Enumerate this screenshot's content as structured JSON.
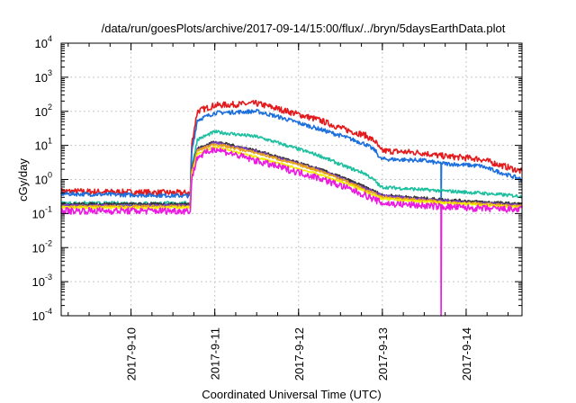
{
  "chart_data": {
    "type": "line",
    "title": "/data/run/goesPlots/archive/2017-09-14/15:00/flux/../bryn/5daysEarthData.plot",
    "xlabel": "Coordinated Universal Time (UTC)",
    "ylabel": "cGy/day",
    "y_scale": "log",
    "xlim": [
      "2017-09-09T04:00",
      "2017-09-14T16:00"
    ],
    "ylim": [
      0.0001,
      10000
    ],
    "x_ticks": [
      "2017-9-10",
      "2017-9-11",
      "2017-9-12",
      "2017-9-13",
      "2017-9-14"
    ],
    "y_ticks": [
      {
        "base": "10",
        "exp": "-4"
      },
      {
        "base": "10",
        "exp": "-3"
      },
      {
        "base": "10",
        "exp": "-2"
      },
      {
        "base": "10",
        "exp": "-1"
      },
      {
        "base": "10",
        "exp": "0"
      },
      {
        "base": "10",
        "exp": "1"
      },
      {
        "base": "10",
        "exp": "2"
      },
      {
        "base": "10",
        "exp": "3"
      },
      {
        "base": "10",
        "exp": "4"
      }
    ],
    "grid": true,
    "legend": "none",
    "series": [
      {
        "color": "#e41a1c",
        "noise": 0.09,
        "points": [
          [
            "2017-09-09T04:00",
            0.45
          ],
          [
            "2017-09-10T17:00",
            0.4
          ],
          [
            "2017-09-10T17:20",
            10
          ],
          [
            "2017-09-10T19:00",
            100
          ],
          [
            "2017-09-11T00:00",
            150
          ],
          [
            "2017-09-11T12:00",
            170
          ],
          [
            "2017-09-11T18:00",
            120
          ],
          [
            "2017-09-12T06:00",
            55
          ],
          [
            "2017-09-12T13:00",
            30
          ],
          [
            "2017-09-12T19:00",
            20
          ],
          [
            "2017-09-12T22:00",
            13
          ],
          [
            "2017-09-12T23:30",
            7
          ],
          [
            "2017-09-13T12:00",
            6
          ],
          [
            "2017-09-13T16:00",
            5
          ],
          [
            "2017-09-14T04:00",
            4
          ],
          [
            "2017-09-14T16:00",
            1.7
          ]
        ]
      },
      {
        "color": "#1c6fdc",
        "noise": 0.06,
        "points": [
          [
            "2017-09-09T04:00",
            0.38
          ],
          [
            "2017-09-10T17:00",
            0.33
          ],
          [
            "2017-09-10T17:20",
            6
          ],
          [
            "2017-09-10T19:00",
            55
          ],
          [
            "2017-09-11T00:00",
            90
          ],
          [
            "2017-09-11T12:00",
            100
          ],
          [
            "2017-09-11T18:00",
            70
          ],
          [
            "2017-09-12T06:00",
            30
          ],
          [
            "2017-09-12T13:00",
            18
          ],
          [
            "2017-09-12T19:00",
            11
          ],
          [
            "2017-09-12T22:00",
            7
          ],
          [
            "2017-09-12T23:30",
            4
          ],
          [
            "2017-09-13T12:00",
            3.6
          ],
          [
            "2017-09-13T16:00",
            3
          ],
          [
            "2017-09-14T04:00",
            2.5
          ],
          [
            "2017-09-14T16:00",
            1.0
          ]
        ],
        "spike": {
          "at": "2017-09-13T16:50",
          "to": 0.12
        }
      },
      {
        "color": "#1dbf9f",
        "noise": 0.05,
        "points": [
          [
            "2017-09-09T04:00",
            0.2
          ],
          [
            "2017-09-10T17:00",
            0.2
          ],
          [
            "2017-09-10T17:20",
            2
          ],
          [
            "2017-09-10T19:00",
            15
          ],
          [
            "2017-09-11T00:00",
            25
          ],
          [
            "2017-09-11T12:00",
            18
          ],
          [
            "2017-09-11T18:00",
            12
          ],
          [
            "2017-09-12T06:00",
            5
          ],
          [
            "2017-09-12T13:00",
            2.5
          ],
          [
            "2017-09-12T19:00",
            1.5
          ],
          [
            "2017-09-12T22:00",
            0.9
          ],
          [
            "2017-09-12T23:30",
            0.6
          ],
          [
            "2017-09-13T12:00",
            0.5
          ],
          [
            "2017-09-14T04:00",
            0.4
          ],
          [
            "2017-09-14T16:00",
            0.32
          ]
        ]
      },
      {
        "color": "#333333",
        "noise": 0.04,
        "points": [
          [
            "2017-09-09T04:00",
            0.19
          ],
          [
            "2017-09-10T17:00",
            0.19
          ],
          [
            "2017-09-10T17:20",
            2
          ],
          [
            "2017-09-10T19:00",
            8
          ],
          [
            "2017-09-11T00:00",
            13
          ],
          [
            "2017-09-11T12:00",
            7
          ],
          [
            "2017-09-12T06:00",
            2
          ],
          [
            "2017-09-12T13:00",
            1.1
          ],
          [
            "2017-09-12T19:00",
            0.6
          ],
          [
            "2017-09-13T00:00",
            0.35
          ],
          [
            "2017-09-13T12:00",
            0.28
          ],
          [
            "2017-09-14T04:00",
            0.22
          ],
          [
            "2017-09-14T16:00",
            0.19
          ]
        ]
      },
      {
        "color": "#7b3fc4",
        "noise": 0.04,
        "points": [
          [
            "2017-09-09T04:00",
            0.17
          ],
          [
            "2017-09-10T17:00",
            0.17
          ],
          [
            "2017-09-10T17:20",
            1.8
          ],
          [
            "2017-09-10T19:00",
            7.5
          ],
          [
            "2017-09-11T00:00",
            12
          ],
          [
            "2017-09-11T12:00",
            6.5
          ],
          [
            "2017-09-12T06:00",
            1.9
          ],
          [
            "2017-09-12T13:00",
            1.0
          ],
          [
            "2017-09-12T19:00",
            0.55
          ],
          [
            "2017-09-13T00:00",
            0.33
          ],
          [
            "2017-09-13T12:00",
            0.26
          ],
          [
            "2017-09-14T04:00",
            0.2
          ],
          [
            "2017-09-14T16:00",
            0.17
          ]
        ]
      },
      {
        "color": "#e8a21a",
        "noise": 0.04,
        "points": [
          [
            "2017-09-09T04:00",
            0.16
          ],
          [
            "2017-09-10T17:00",
            0.16
          ],
          [
            "2017-09-10T17:20",
            1.6
          ],
          [
            "2017-09-10T19:00",
            7
          ],
          [
            "2017-09-11T00:00",
            11
          ],
          [
            "2017-09-11T12:00",
            6
          ],
          [
            "2017-09-12T06:00",
            1.8
          ],
          [
            "2017-09-12T13:00",
            0.95
          ],
          [
            "2017-09-12T19:00",
            0.5
          ],
          [
            "2017-09-13T00:00",
            0.3
          ],
          [
            "2017-09-13T12:00",
            0.24
          ],
          [
            "2017-09-14T04:00",
            0.19
          ],
          [
            "2017-09-14T16:00",
            0.16
          ]
        ]
      },
      {
        "color": "#f0f000",
        "noise": 0.03,
        "points": [
          [
            "2017-09-09T04:00",
            0.15
          ],
          [
            "2017-09-10T17:00",
            0.15
          ],
          [
            "2017-09-10T17:20",
            1.3
          ],
          [
            "2017-09-10T19:00",
            5.5
          ],
          [
            "2017-09-11T00:00",
            9
          ],
          [
            "2017-09-11T12:00",
            4.5
          ],
          [
            "2017-09-12T06:00",
            1.4
          ],
          [
            "2017-09-12T13:00",
            0.8
          ],
          [
            "2017-09-12T19:00",
            0.45
          ],
          [
            "2017-09-13T00:00",
            0.27
          ],
          [
            "2017-09-13T12:00",
            0.22
          ],
          [
            "2017-09-14T04:00",
            0.18
          ],
          [
            "2017-09-14T16:00",
            0.15
          ]
        ]
      },
      {
        "color": "#ec1be0",
        "noise": 0.1,
        "points": [
          [
            "2017-09-09T04:00",
            0.12
          ],
          [
            "2017-09-10T17:00",
            0.12
          ],
          [
            "2017-09-10T17:20",
            1.0
          ],
          [
            "2017-09-10T19:00",
            4.5
          ],
          [
            "2017-09-11T00:00",
            8
          ],
          [
            "2017-09-11T12:00",
            3.5
          ],
          [
            "2017-09-12T06:00",
            1.1
          ],
          [
            "2017-09-12T13:00",
            0.6
          ],
          [
            "2017-09-12T19:00",
            0.35
          ],
          [
            "2017-09-13T00:00",
            0.2
          ],
          [
            "2017-09-13T12:00",
            0.17
          ],
          [
            "2017-09-14T04:00",
            0.14
          ],
          [
            "2017-09-14T16:00",
            0.13
          ]
        ],
        "spike": {
          "at": "2017-09-13T16:50",
          "to": 0.0001
        }
      }
    ]
  }
}
